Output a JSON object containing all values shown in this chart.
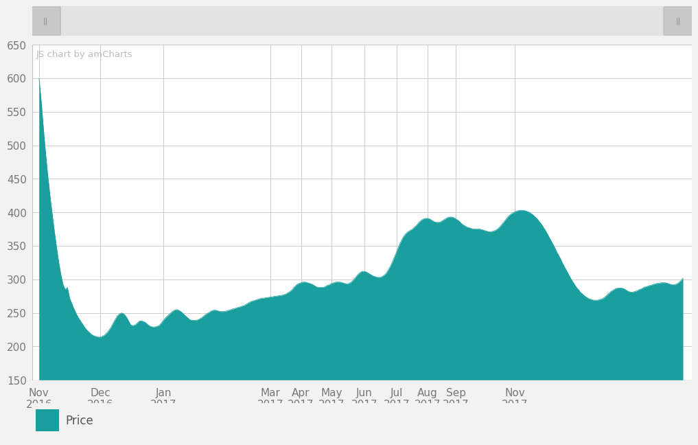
{
  "fill_color": "#1a9e9e",
  "background_color": "#f2f2f2",
  "chart_bg": "#ffffff",
  "grid_color": "#cccccc",
  "text_color": "#777777",
  "watermark": "JS chart by amCharts",
  "legend_label": "Price",
  "ylim": [
    150,
    650
  ],
  "yticks": [
    150,
    200,
    250,
    300,
    350,
    400,
    450,
    500,
    550,
    600,
    650
  ],
  "x_tick_labels": [
    "Nov\n2016",
    "Dec\n2016",
    "Jan\n2017",
    "Mar\n2017",
    "Apr\n2017",
    "May\n2017",
    "Jun\n2017",
    "Jul\n2017",
    "Aug\n2017",
    "Sep\n2017",
    "Nov\n2017"
  ],
  "prices": [
    600,
    565,
    525,
    488,
    455,
    425,
    398,
    372,
    348,
    326,
    307,
    292,
    285,
    288,
    272,
    264,
    256,
    249,
    243,
    238,
    233,
    228,
    224,
    221,
    218,
    216,
    215,
    214,
    214,
    215,
    217,
    220,
    224,
    229,
    235,
    241,
    246,
    249,
    250,
    248,
    244,
    238,
    232,
    231,
    232,
    235,
    238,
    238,
    237,
    235,
    232,
    230,
    229,
    229,
    230,
    231,
    235,
    239,
    243,
    246,
    249,
    252,
    254,
    255,
    254,
    252,
    249,
    246,
    243,
    240,
    239,
    239,
    239,
    240,
    242,
    244,
    247,
    249,
    251,
    253,
    254,
    254,
    253,
    252,
    252,
    252,
    253,
    254,
    255,
    256,
    257,
    258,
    259,
    260,
    261,
    263,
    265,
    267,
    268,
    269,
    270,
    271,
    272,
    272,
    273,
    273,
    274,
    274,
    275,
    275,
    276,
    276,
    277,
    278,
    280,
    282,
    285,
    289,
    292,
    294,
    295,
    296,
    296,
    295,
    294,
    293,
    291,
    289,
    288,
    288,
    288,
    289,
    291,
    292,
    294,
    295,
    296,
    296,
    296,
    295,
    294,
    293,
    294,
    296,
    299,
    303,
    307,
    310,
    312,
    312,
    311,
    309,
    307,
    305,
    304,
    303,
    303,
    304,
    306,
    309,
    314,
    320,
    327,
    335,
    343,
    351,
    358,
    364,
    368,
    371,
    373,
    375,
    378,
    381,
    385,
    388,
    390,
    391,
    391,
    390,
    388,
    386,
    385,
    385,
    386,
    388,
    390,
    392,
    393,
    393,
    392,
    390,
    388,
    385,
    382,
    380,
    378,
    377,
    376,
    375,
    375,
    375,
    375,
    374,
    373,
    372,
    371,
    371,
    372,
    373,
    375,
    378,
    382,
    386,
    390,
    394,
    397,
    399,
    401,
    402,
    403,
    403,
    403,
    402,
    401,
    399,
    397,
    394,
    391,
    387,
    383,
    378,
    373,
    367,
    361,
    355,
    349,
    342,
    336,
    330,
    323,
    317,
    311,
    305,
    299,
    294,
    289,
    285,
    281,
    278,
    275,
    273,
    271,
    270,
    269,
    269,
    269,
    270,
    271,
    273,
    276,
    279,
    282,
    284,
    286,
    287,
    287,
    287,
    286,
    284,
    282,
    281,
    281,
    282,
    283,
    285,
    286,
    288,
    289,
    290,
    291,
    292,
    293,
    294,
    294,
    295,
    295,
    295,
    294,
    293,
    292,
    292,
    293,
    295,
    298,
    302
  ],
  "x_tick_indices": [
    0,
    28,
    57,
    106,
    120,
    134,
    149,
    164,
    178,
    191,
    218
  ]
}
